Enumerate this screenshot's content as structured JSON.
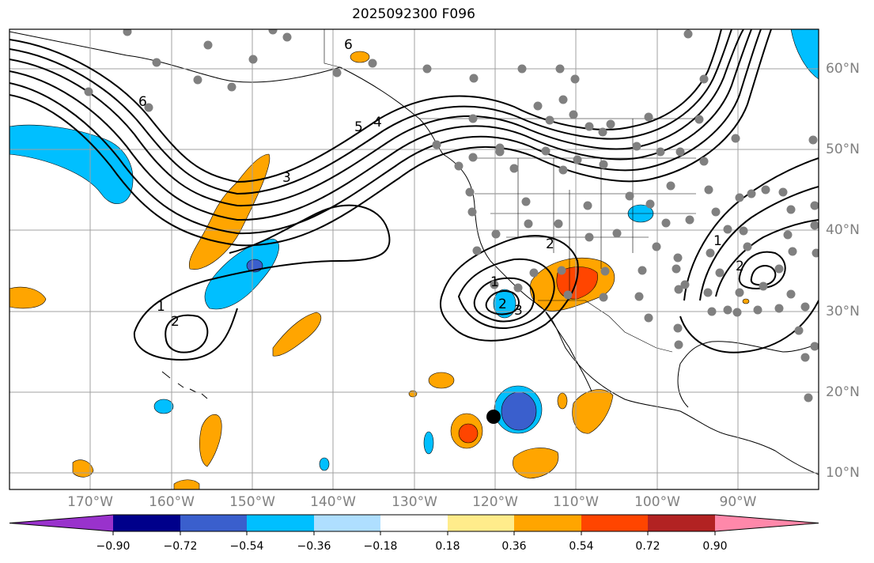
{
  "title": "2025092300 F096",
  "lat_labels": [
    "60°N",
    "50°N",
    "40°N",
    "30°N",
    "20°N",
    "10°N"
  ],
  "lon_labels": [
    "170°W",
    "160°W",
    "150°W",
    "140°W",
    "130°W",
    "120°W",
    "110°W",
    "100°W",
    "90°W"
  ],
  "contour_labels": [
    "6",
    "6",
    "5",
    "4",
    "3",
    "2",
    "1",
    "2",
    "1",
    "2",
    "3",
    "1",
    "2"
  ],
  "colorbar": {
    "tick_labels": [
      "−0.90",
      "−0.72",
      "−0.54",
      "−0.36",
      "−0.18",
      "0.18",
      "0.36",
      "0.54",
      "0.72",
      "0.90"
    ],
    "colors": [
      "#9932cc",
      "#00008b",
      "#3a5fcd",
      "#00bfff",
      "#afdfff",
      "#ffffff",
      "#ffec8b",
      "#ffa500",
      "#ff4500",
      "#b22222",
      "#ff88aa"
    ]
  },
  "colors": {
    "contour": "#000000",
    "grid": "#a0a0a0",
    "station_dot": "#808080",
    "storm_marker": "#000000"
  }
}
